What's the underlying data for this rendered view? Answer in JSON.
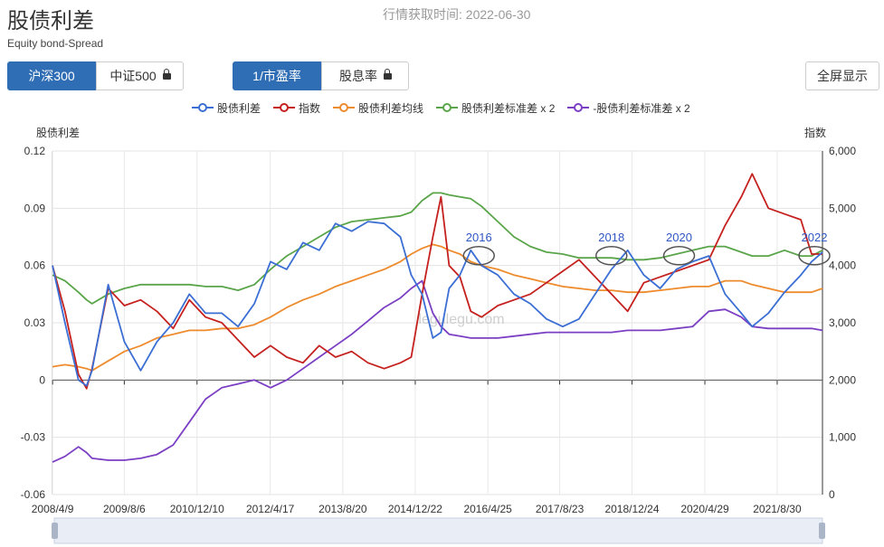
{
  "header": {
    "title": "股债利差",
    "subtitle": "Equity bond-Spread",
    "datetime_label": "行情获取时间: 2022-06-30",
    "fullscreen_label": "全屏显示"
  },
  "index_tabs": [
    {
      "label": "沪深300",
      "active": true,
      "locked": false
    },
    {
      "label": "中证500",
      "active": false,
      "locked": true
    }
  ],
  "metric_tabs": [
    {
      "label": "1/市盈率",
      "active": true,
      "locked": false
    },
    {
      "label": "股息率",
      "active": false,
      "locked": true
    }
  ],
  "colors": {
    "spread": "#3b6fd4",
    "index": "#c4211f",
    "mean": "#ee8b2d",
    "plus2sd": "#5aa54a",
    "minus2sd": "#7b3fc4",
    "accent": "#2f6db5"
  },
  "watermark": "legulegu.com",
  "chart_data": {
    "type": "line",
    "left_axis_label": "股债利差",
    "right_axis_label": "指数",
    "y_left_range": [
      -0.06,
      0.12
    ],
    "y_left_ticks": [
      "0.12",
      "0.09",
      "0.06",
      "0.03",
      "0",
      "-0.03",
      "-0.06"
    ],
    "y_right_range": [
      0,
      6000
    ],
    "y_right_ticks": [
      "6,000",
      "5,000",
      "4,000",
      "3,000",
      "2,000",
      "1,000",
      "0"
    ],
    "x_ticks": [
      "2008/4/9",
      "2009/8/6",
      "2010/12/10",
      "2012/4/17",
      "2013/8/20",
      "2014/12/22",
      "2016/4/25",
      "2017/8/23",
      "2018/12/24",
      "2020/4/29",
      "2021/8/30"
    ],
    "grid": true,
    "legend_position": "top-center",
    "x_years": [
      2008.27,
      2008.5,
      2008.75,
      2008.9,
      2009.0,
      2009.3,
      2009.6,
      2009.9,
      2010.2,
      2010.5,
      2010.8,
      2011.1,
      2011.4,
      2011.7,
      2012.0,
      2012.3,
      2012.6,
      2012.9,
      2013.2,
      2013.5,
      2013.8,
      2014.1,
      2014.4,
      2014.7,
      2014.9,
      2015.1,
      2015.3,
      2015.45,
      2015.6,
      2015.8,
      2016.0,
      2016.2,
      2016.5,
      2016.8,
      2017.1,
      2017.4,
      2017.7,
      2018.0,
      2018.3,
      2018.6,
      2018.9,
      2019.2,
      2019.5,
      2019.8,
      2020.1,
      2020.4,
      2020.7,
      2021.0,
      2021.2,
      2021.5,
      2021.8,
      2022.1,
      2022.3,
      2022.5
    ],
    "series": [
      {
        "name": "股债利差",
        "values": [
          0.06,
          0.03,
          0.0,
          -0.003,
          0.005,
          0.05,
          0.02,
          0.005,
          0.02,
          0.03,
          0.045,
          0.035,
          0.035,
          0.028,
          0.04,
          0.062,
          0.058,
          0.072,
          0.068,
          0.082,
          0.078,
          0.083,
          0.082,
          0.075,
          0.055,
          0.045,
          0.022,
          0.025,
          0.048,
          0.055,
          0.068,
          0.06,
          0.055,
          0.045,
          0.04,
          0.032,
          0.028,
          0.032,
          0.045,
          0.058,
          0.068,
          0.055,
          0.048,
          0.058,
          0.062,
          0.065,
          0.045,
          0.035,
          0.028,
          0.035,
          0.046,
          0.055,
          0.062,
          0.067
        ]
      },
      {
        "name": "指数",
        "values": [
          4000,
          3200,
          2100,
          1850,
          2200,
          3600,
          3300,
          3400,
          3200,
          2900,
          3400,
          3100,
          3000,
          2700,
          2400,
          2600,
          2400,
          2300,
          2600,
          2400,
          2500,
          2300,
          2200,
          2300,
          2400,
          3500,
          4500,
          5200,
          4000,
          3800,
          3200,
          3100,
          3300,
          3400,
          3500,
          3700,
          3900,
          4100,
          3800,
          3500,
          3200,
          3700,
          3800,
          3900,
          4000,
          4100,
          4700,
          5200,
          5600,
          5000,
          4900,
          4800,
          4200,
          4200
        ]
      },
      {
        "name": "股债利差均线",
        "values": [
          0.007,
          0.008,
          0.007,
          0.006,
          0.005,
          0.01,
          0.015,
          0.018,
          0.022,
          0.024,
          0.026,
          0.026,
          0.027,
          0.027,
          0.029,
          0.033,
          0.038,
          0.042,
          0.045,
          0.049,
          0.052,
          0.055,
          0.058,
          0.062,
          0.066,
          0.069,
          0.071,
          0.07,
          0.068,
          0.066,
          0.062,
          0.06,
          0.058,
          0.055,
          0.053,
          0.051,
          0.049,
          0.048,
          0.047,
          0.047,
          0.046,
          0.046,
          0.047,
          0.048,
          0.049,
          0.049,
          0.052,
          0.052,
          0.05,
          0.048,
          0.046,
          0.046,
          0.046,
          0.048
        ]
      },
      {
        "name": "股债利差标准差 x 2",
        "values": [
          0.055,
          0.052,
          0.046,
          0.042,
          0.04,
          0.045,
          0.048,
          0.05,
          0.05,
          0.05,
          0.05,
          0.049,
          0.049,
          0.047,
          0.05,
          0.058,
          0.065,
          0.07,
          0.075,
          0.08,
          0.083,
          0.084,
          0.085,
          0.086,
          0.088,
          0.094,
          0.098,
          0.098,
          0.097,
          0.096,
          0.095,
          0.091,
          0.083,
          0.075,
          0.07,
          0.067,
          0.066,
          0.064,
          0.064,
          0.064,
          0.063,
          0.063,
          0.064,
          0.066,
          0.068,
          0.07,
          0.07,
          0.067,
          0.065,
          0.065,
          0.068,
          0.065,
          0.065,
          0.068
        ]
      },
      {
        "name": "-股债利差标准差 x 2",
        "values": [
          -0.043,
          -0.04,
          -0.035,
          -0.038,
          -0.041,
          -0.042,
          -0.042,
          -0.041,
          -0.039,
          -0.034,
          -0.022,
          -0.01,
          -0.004,
          -0.002,
          0.0,
          -0.004,
          0.0,
          0.006,
          0.012,
          0.018,
          0.024,
          0.031,
          0.038,
          0.043,
          0.048,
          0.052,
          0.035,
          0.028,
          0.024,
          0.023,
          0.022,
          0.022,
          0.022,
          0.023,
          0.024,
          0.025,
          0.025,
          0.025,
          0.025,
          0.025,
          0.026,
          0.026,
          0.026,
          0.027,
          0.028,
          0.036,
          0.037,
          0.033,
          0.028,
          0.027,
          0.027,
          0.027,
          0.027,
          0.026
        ]
      }
    ],
    "annotations": [
      {
        "label": "2016",
        "x": 2016.15,
        "y": 0.068
      },
      {
        "label": "2018",
        "x": 2018.6,
        "y": 0.068
      },
      {
        "label": "2020",
        "x": 2019.85,
        "y": 0.068
      },
      {
        "label": "2022",
        "x": 2022.35,
        "y": 0.068
      }
    ]
  }
}
